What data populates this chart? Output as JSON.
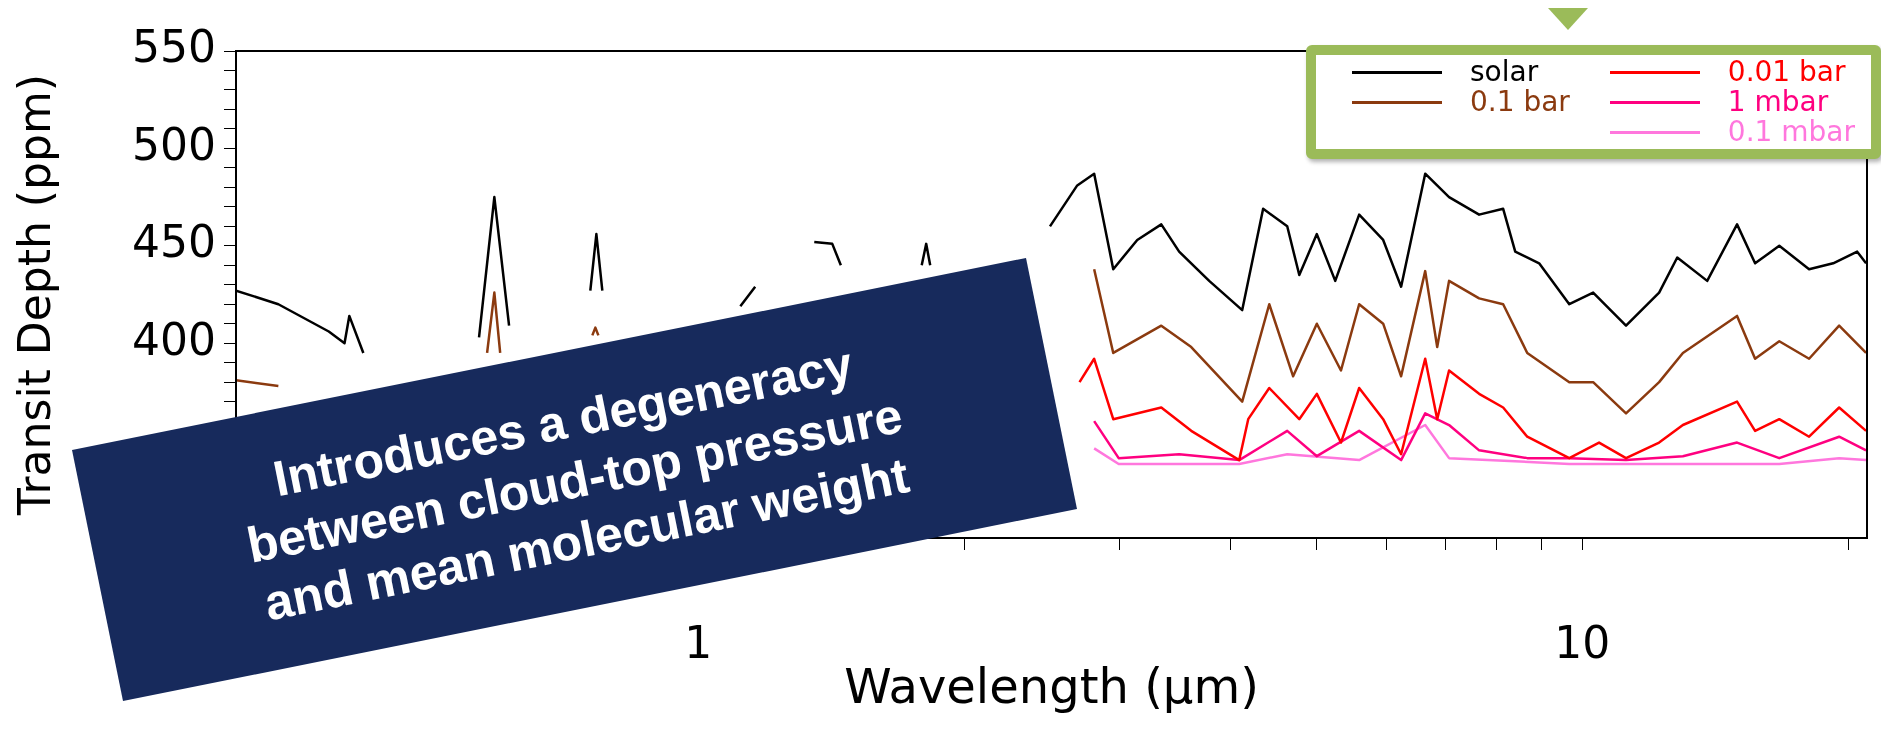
{
  "chart_data": {
    "type": "line",
    "xlabel": "Wavelength (μm)",
    "ylabel": "Transit Depth (ppm)",
    "log": "x",
    "grid": false,
    "legend": "top right",
    "marker": "none",
    "line_style": "solid",
    "xlim": [
      0.3,
      21
    ],
    "xticks": [
      {
        "value": 0.3,
        "label": null
      },
      {
        "value": 0.4,
        "label": null
      },
      {
        "value": 0.5,
        "label": null
      },
      {
        "value": 0.6,
        "label": null
      },
      {
        "value": 0.7,
        "label": null
      },
      {
        "value": 0.8,
        "label": null
      },
      {
        "value": 0.9,
        "label": null
      },
      1,
      {
        "value": 2,
        "label": null
      },
      {
        "value": 3,
        "label": null
      },
      {
        "value": 4,
        "label": null
      },
      {
        "value": 5,
        "label": null
      },
      {
        "value": 6,
        "label": null
      },
      {
        "value": 7,
        "label": null
      },
      {
        "value": 8,
        "label": null
      },
      {
        "value": 9,
        "label": null
      },
      10,
      {
        "value": 20,
        "label": null
      }
    ],
    "ylim": [
      300,
      550
    ],
    "yticks": [
      {
        "value": 300,
        "label": null
      },
      {
        "value": 310,
        "label": null
      },
      {
        "value": 320,
        "label": null
      },
      {
        "value": 330,
        "label": null
      },
      {
        "value": 340,
        "label": null
      },
      {
        "value": 350,
        "label": null
      },
      {
        "value": 360,
        "label": null
      },
      {
        "value": 370,
        "label": null
      },
      {
        "value": 380,
        "label": null
      },
      {
        "value": 390,
        "label": null
      },
      400,
      {
        "value": 410,
        "label": null
      },
      {
        "value": 420,
        "label": null
      },
      {
        "value": 430,
        "label": null
      },
      {
        "value": 440,
        "label": null
      },
      450,
      {
        "value": 460,
        "label": null
      },
      {
        "value": 470,
        "label": null
      },
      {
        "value": 480,
        "label": null
      },
      {
        "value": 490,
        "label": null
      },
      500,
      {
        "value": 510,
        "label": null
      },
      {
        "value": 520,
        "label": null
      },
      {
        "value": 530,
        "label": null
      },
      {
        "value": 540,
        "label": null
      },
      550
    ],
    "annotations": [
      "Introduces a degeneracy\nbetween cloud-top pressure\nand mean molecular weight"
    ],
    "series": [
      {
        "name": "solar",
        "color": "#000000",
        "x": [
          0.3,
          0.335,
          0.382,
          0.398,
          0.403,
          0.418,
          0.504,
          0.565,
          0.588,
          0.611,
          0.649,
          0.69,
          0.755,
          0.767,
          0.779,
          0.86,
          0.937,
          1.116,
          1.16,
          1.335,
          1.353,
          1.418,
          1.45,
          1.6,
          1.79,
          1.811,
          1.83,
          2.443,
          2.5,
          2.684,
          2.805,
          2.948,
          3.138,
          3.341,
          3.5,
          3.785,
          4.125,
          4.356,
          4.638,
          4.786,
          5.01,
          5.256,
          5.594,
          5.955,
          6.24,
          6.644,
          7.07,
          7.646,
          8.14,
          8.4,
          8.94,
          9.67,
          10.29,
          11.21,
          12.22,
          12.81,
          13.85,
          14.97,
          15.69,
          16.71,
          18.06,
          19.23,
          20.47,
          20.95
        ],
        "values": [
          427,
          420,
          406,
          400,
          414,
          395,
          null,
          403,
          475,
          409,
          null,
          null,
          427,
          456,
          427,
          null,
          null,
          419,
          429,
          null,
          452,
          451,
          440,
          null,
          440,
          451,
          440,
          null,
          460,
          481,
          487,
          438,
          453,
          461,
          447,
          432,
          417,
          469,
          460,
          435,
          456,
          432,
          466,
          453,
          429,
          487,
          475,
          466,
          469,
          447,
          441,
          420,
          426,
          409,
          426,
          444,
          432,
          461,
          441,
          450,
          438,
          441,
          447,
          441
        ]
      },
      {
        "name": "0.1 bar",
        "color": "#8b3a0f",
        "x": [
          0.3,
          0.335,
          0.36,
          0.577,
          0.588,
          0.597,
          0.65,
          0.759,
          0.765,
          0.771,
          2.2,
          2.482,
          2.805,
          2.948,
          3.341,
          3.612,
          4.125,
          4.426,
          4.71,
          5.01,
          5.335,
          5.594,
          5.955,
          6.24,
          6.644,
          6.855,
          7.07,
          7.646,
          8.14,
          8.667,
          9.67,
          10.29,
          11.21,
          12.22,
          13.0,
          14.97,
          15.69,
          16.71,
          18.06,
          19.53,
          20.95
        ],
        "values": [
          381,
          378,
          null,
          395,
          426,
          395,
          null,
          404,
          408,
          404,
          null,
          null,
          438,
          395,
          409,
          398,
          370,
          420,
          383,
          410,
          386,
          420,
          410,
          383,
          437,
          398,
          432,
          423,
          420,
          395,
          380,
          380,
          364,
          380,
          395,
          414,
          392,
          401,
          392,
          409,
          395
        ]
      },
      {
        "name": "0.01 bar",
        "color": "#ff0000",
        "x": [
          2.7,
          2.805,
          2.948,
          3.341,
          3.612,
          4.093,
          4.19,
          4.426,
          4.786,
          5.01,
          5.335,
          5.594,
          5.955,
          6.24,
          6.644,
          6.855,
          7.07,
          7.646,
          8.14,
          8.667,
          9.67,
          10.45,
          11.21,
          12.22,
          13.0,
          14.97,
          15.69,
          16.71,
          18.06,
          19.53,
          20.95
        ],
        "values": [
          380,
          392,
          361,
          367,
          355,
          340,
          361,
          377,
          361,
          374,
          349,
          377,
          361,
          343,
          392,
          361,
          386,
          374,
          367,
          352,
          341,
          349,
          341,
          349,
          358,
          370,
          355,
          361,
          352,
          367,
          355
        ]
      },
      {
        "name": "1 mbar",
        "color": "#ff0080",
        "x": [
          2.805,
          2.99,
          3.5,
          4.093,
          4.638,
          5.01,
          5.594,
          6.24,
          6.644,
          7.07,
          7.646,
          8.667,
          9.67,
          11.21,
          13.0,
          14.97,
          16.71,
          19.53,
          20.95
        ],
        "values": [
          360,
          341,
          343,
          340,
          355,
          342,
          355,
          340,
          364,
          358,
          345,
          341,
          341,
          340,
          342,
          349,
          341,
          352,
          345
        ]
      },
      {
        "name": "0.1 mbar",
        "color": "#ff77dd",
        "x": [
          2.805,
          2.99,
          4.093,
          4.638,
          5.594,
          6.644,
          7.07,
          9.67,
          12.22,
          16.71,
          19.53,
          20.95
        ],
        "values": [
          346,
          338,
          338,
          343,
          340,
          358,
          341,
          338,
          338,
          338,
          341,
          340
        ]
      }
    ]
  }
}
